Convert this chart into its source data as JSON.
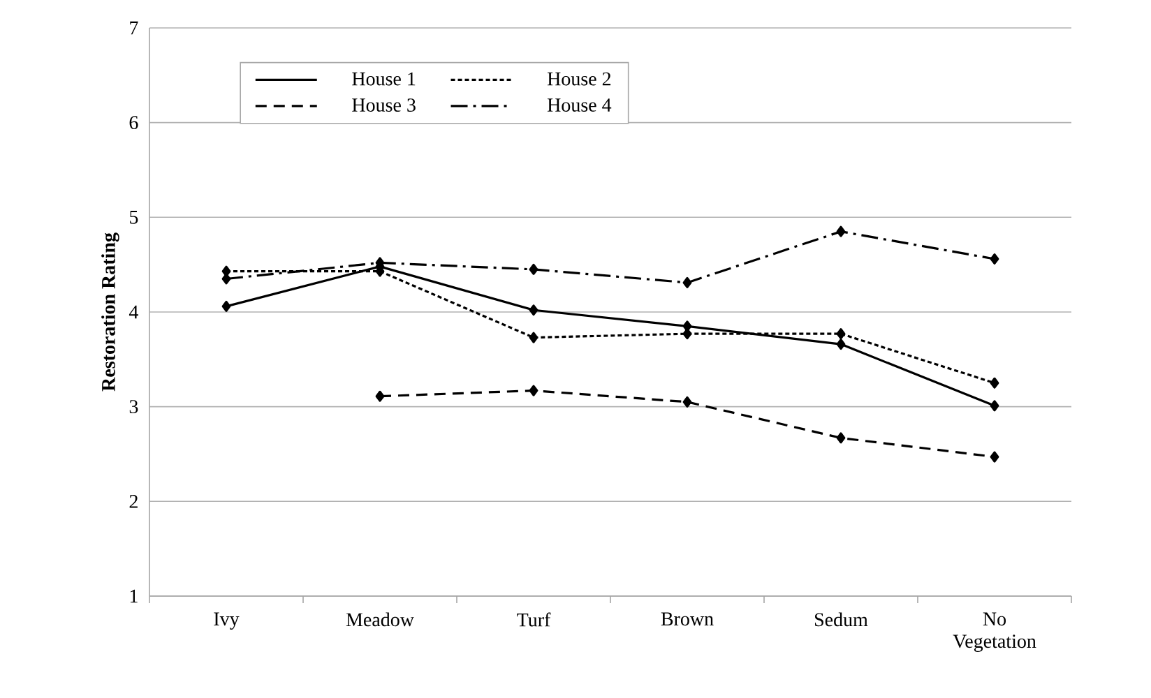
{
  "chart_data": {
    "type": "line",
    "ylabel": "Restoration Rating",
    "categories": [
      "Ivy",
      "Meadow",
      "Turf",
      "Brown",
      "Sedum",
      "No Vegetation"
    ],
    "series": [
      {
        "name": "House 1",
        "color": "#000000",
        "line_style": "solid",
        "values": [
          4.06,
          4.48,
          4.02,
          3.85,
          3.66,
          3.01
        ]
      },
      {
        "name": "House 2",
        "color": "#000000",
        "line_style": "dotted",
        "values": [
          4.43,
          4.43,
          3.73,
          3.77,
          3.77,
          3.25
        ]
      },
      {
        "name": "House 3",
        "color": "#000000",
        "line_style": "dashed",
        "values": [
          null,
          3.11,
          3.17,
          3.05,
          2.67,
          2.47
        ]
      },
      {
        "name": "House 4",
        "color": "#000000",
        "line_style": "dashdot",
        "values": [
          4.35,
          4.52,
          4.45,
          4.31,
          4.85,
          4.56
        ]
      }
    ],
    "ylim": [
      1,
      7
    ],
    "yticks": [
      1,
      2,
      3,
      4,
      5,
      6,
      7
    ],
    "grid": "y",
    "legend": "top left",
    "marker": "diamond"
  }
}
